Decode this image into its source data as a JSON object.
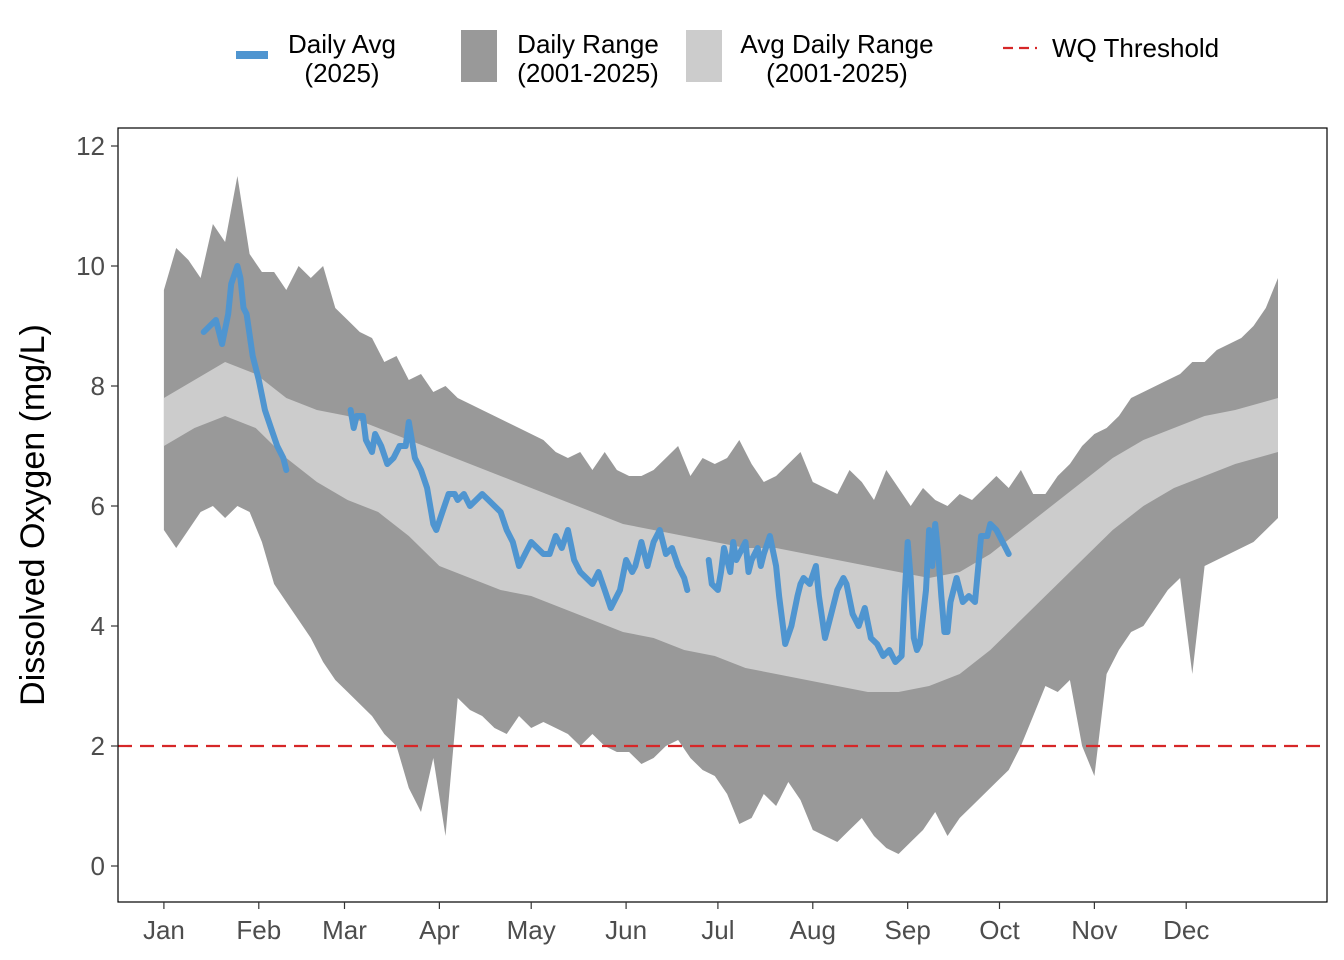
{
  "chart_data": {
    "type": "area",
    "title": "",
    "xlabel": "",
    "ylabel": "Dissolved Oxygen (mg/L)",
    "ylim": [
      -0.6,
      12.3
    ],
    "xlim": [
      -15,
      380
    ],
    "yticks": [
      0,
      2,
      4,
      6,
      8,
      10,
      12
    ],
    "months": [
      {
        "label": "Jan",
        "day": 0
      },
      {
        "label": "Feb",
        "day": 31
      },
      {
        "label": "Mar",
        "day": 59
      },
      {
        "label": "Apr",
        "day": 90
      },
      {
        "label": "May",
        "day": 120
      },
      {
        "label": "Jun",
        "day": 151
      },
      {
        "label": "Jul",
        "day": 181
      },
      {
        "label": "Aug",
        "day": 212
      },
      {
        "label": "Sep",
        "day": 243
      },
      {
        "label": "Oct",
        "day": 273
      },
      {
        "label": "Nov",
        "day": 304
      },
      {
        "label": "Dec",
        "day": 334
      }
    ],
    "colors": {
      "daily_avg": "#4f95d0",
      "daily_range": "#999999",
      "avg_daily_range": "#cccccc",
      "threshold": "#d62728"
    },
    "threshold": 2,
    "legend": [
      {
        "key": "daily_avg",
        "line1": "Daily Avg",
        "line2": "(2025)"
      },
      {
        "key": "daily_range",
        "line1": "Daily Range",
        "line2": "(2001-2025)"
      },
      {
        "key": "avg_daily_range",
        "line1": "Avg Daily Range",
        "line2": "(2001-2025)"
      },
      {
        "key": "threshold",
        "line1": "WQ Threshold",
        "line2": ""
      }
    ],
    "daily_range": {
      "x": [
        0,
        4,
        8,
        12,
        16,
        20,
        24,
        28,
        32,
        36,
        40,
        44,
        48,
        52,
        56,
        60,
        64,
        68,
        72,
        76,
        80,
        84,
        88,
        92,
        96,
        100,
        104,
        108,
        112,
        116,
        120,
        124,
        128,
        132,
        136,
        140,
        144,
        148,
        152,
        156,
        160,
        164,
        168,
        172,
        176,
        180,
        184,
        188,
        192,
        196,
        200,
        204,
        208,
        212,
        216,
        220,
        224,
        228,
        232,
        236,
        240,
        244,
        248,
        252,
        256,
        260,
        264,
        268,
        272,
        276,
        280,
        284,
        288,
        292,
        296,
        300,
        304,
        308,
        312,
        316,
        320,
        324,
        328,
        332,
        336,
        340,
        344,
        348,
        352,
        356,
        360,
        364
      ],
      "high": [
        9.6,
        10.3,
        10.1,
        9.8,
        10.7,
        10.4,
        11.5,
        10.2,
        9.9,
        9.9,
        9.6,
        10.0,
        9.8,
        10.0,
        9.3,
        9.1,
        8.9,
        8.8,
        8.4,
        8.5,
        8.1,
        8.2,
        7.9,
        8.0,
        7.8,
        7.7,
        7.6,
        7.5,
        7.4,
        7.3,
        7.2,
        7.1,
        6.9,
        6.8,
        6.9,
        6.6,
        6.9,
        6.6,
        6.5,
        6.5,
        6.6,
        6.8,
        7.0,
        6.5,
        6.8,
        6.7,
        6.8,
        7.1,
        6.7,
        6.4,
        6.5,
        6.7,
        6.9,
        6.4,
        6.3,
        6.2,
        6.6,
        6.4,
        6.1,
        6.6,
        6.3,
        6.0,
        6.3,
        6.1,
        6.0,
        6.2,
        6.1,
        6.3,
        6.5,
        6.3,
        6.6,
        6.2,
        6.2,
        6.5,
        6.7,
        7.0,
        7.2,
        7.3,
        7.5,
        7.8,
        7.9,
        8.0,
        8.1,
        8.2,
        8.4,
        8.4,
        8.6,
        8.7,
        8.8,
        9.0,
        9.3,
        9.8
      ],
      "low": [
        5.6,
        5.3,
        5.6,
        5.9,
        6.0,
        5.8,
        6.0,
        5.9,
        5.4,
        4.7,
        4.4,
        4.1,
        3.8,
        3.4,
        3.1,
        2.9,
        2.7,
        2.5,
        2.2,
        2.0,
        1.3,
        0.9,
        1.8,
        0.5,
        2.8,
        2.6,
        2.5,
        2.3,
        2.2,
        2.5,
        2.3,
        2.4,
        2.3,
        2.2,
        2.0,
        2.2,
        2.0,
        1.9,
        1.9,
        1.7,
        1.8,
        2.0,
        2.1,
        1.8,
        1.6,
        1.5,
        1.2,
        0.7,
        0.8,
        1.2,
        1.0,
        1.4,
        1.1,
        0.6,
        0.5,
        0.4,
        0.6,
        0.8,
        0.5,
        0.3,
        0.2,
        0.4,
        0.6,
        0.9,
        0.5,
        0.8,
        1.0,
        1.2,
        1.4,
        1.6,
        2.0,
        2.5,
        3.0,
        2.9,
        3.1,
        2.0,
        1.5,
        3.2,
        3.6,
        3.9,
        4.0,
        4.3,
        4.6,
        4.8,
        3.2,
        5.0,
        5.1,
        5.2,
        5.3,
        5.4,
        5.6,
        5.8
      ]
    },
    "avg_daily_range": {
      "x": [
        0,
        10,
        20,
        30,
        40,
        50,
        60,
        70,
        80,
        90,
        100,
        110,
        120,
        130,
        140,
        150,
        160,
        170,
        180,
        190,
        200,
        210,
        220,
        230,
        240,
        250,
        260,
        270,
        280,
        290,
        300,
        310,
        320,
        330,
        340,
        350,
        364
      ],
      "high": [
        7.8,
        8.1,
        8.4,
        8.2,
        7.8,
        7.6,
        7.5,
        7.3,
        7.1,
        6.9,
        6.7,
        6.5,
        6.3,
        6.1,
        5.9,
        5.7,
        5.6,
        5.5,
        5.4,
        5.3,
        5.3,
        5.2,
        5.1,
        5.0,
        4.9,
        4.8,
        4.9,
        5.2,
        5.6,
        6.0,
        6.4,
        6.8,
        7.1,
        7.3,
        7.5,
        7.6,
        7.8
      ],
      "low": [
        7.0,
        7.3,
        7.5,
        7.3,
        6.8,
        6.4,
        6.1,
        5.9,
        5.5,
        5.0,
        4.8,
        4.6,
        4.5,
        4.3,
        4.1,
        3.9,
        3.8,
        3.6,
        3.5,
        3.3,
        3.2,
        3.1,
        3.0,
        2.9,
        2.9,
        3.0,
        3.2,
        3.6,
        4.1,
        4.6,
        5.1,
        5.6,
        6.0,
        6.3,
        6.5,
        6.7,
        6.9
      ]
    },
    "daily_avg": {
      "segments": [
        {
          "x": [
            13,
            15,
            17,
            19,
            21,
            22,
            24,
            25,
            26,
            27,
            29,
            31,
            33,
            35,
            37,
            39,
            40
          ],
          "y": [
            8.9,
            9.0,
            9.1,
            8.7,
            9.2,
            9.7,
            10.0,
            9.8,
            9.3,
            9.2,
            8.5,
            8.1,
            7.6,
            7.3,
            7.0,
            6.8,
            6.6
          ]
        },
        {
          "x": [
            61,
            62,
            63,
            65,
            66,
            68,
            69,
            71,
            73,
            75,
            77,
            79,
            80,
            82,
            84,
            86,
            88,
            89,
            91,
            93,
            95,
            96,
            98,
            100,
            102,
            104,
            106,
            108,
            110,
            112,
            114,
            116,
            118,
            120,
            122,
            124,
            126,
            128,
            130,
            132,
            134,
            136,
            138,
            140,
            142,
            144,
            146,
            148,
            149,
            151,
            153,
            154,
            156,
            158,
            160,
            162,
            164,
            166,
            168,
            170,
            171
          ],
          "y": [
            7.6,
            7.3,
            7.5,
            7.5,
            7.1,
            6.9,
            7.2,
            7.0,
            6.7,
            6.8,
            7.0,
            7.0,
            7.4,
            6.8,
            6.6,
            6.3,
            5.7,
            5.6,
            5.9,
            6.2,
            6.2,
            6.1,
            6.2,
            6.0,
            6.1,
            6.2,
            6.1,
            6.0,
            5.9,
            5.6,
            5.4,
            5.0,
            5.2,
            5.4,
            5.3,
            5.2,
            5.2,
            5.5,
            5.3,
            5.6,
            5.1,
            4.9,
            4.8,
            4.7,
            4.9,
            4.6,
            4.3,
            4.5,
            4.6,
            5.1,
            4.9,
            5.0,
            5.4,
            5.0,
            5.4,
            5.6,
            5.2,
            5.3,
            5.0,
            4.8,
            4.6
          ]
        },
        {
          "x": [
            178,
            179,
            181,
            182,
            183,
            185,
            186,
            187,
            188,
            190,
            191,
            192,
            194,
            195,
            196,
            198,
            200,
            201,
            203,
            205,
            207,
            208,
            209,
            211,
            213,
            214,
            216,
            218,
            220,
            222,
            223,
            225,
            227,
            229,
            231,
            233,
            235,
            237,
            239,
            241,
            242,
            243,
            244,
            245,
            246,
            247,
            249,
            250,
            251,
            252,
            253,
            254,
            255,
            256,
            257,
            259,
            261,
            263,
            265,
            267,
            269,
            270,
            272,
            274,
            276
          ],
          "y": [
            5.1,
            4.7,
            4.6,
            4.9,
            5.3,
            4.9,
            5.4,
            5.1,
            5.2,
            5.4,
            4.9,
            5.1,
            5.3,
            5.0,
            5.2,
            5.5,
            5.0,
            4.5,
            3.7,
            4.0,
            4.5,
            4.7,
            4.8,
            4.7,
            5.0,
            4.5,
            3.8,
            4.2,
            4.6,
            4.8,
            4.7,
            4.2,
            4.0,
            4.3,
            3.8,
            3.7,
            3.5,
            3.6,
            3.4,
            3.5,
            4.5,
            5.4,
            4.8,
            3.8,
            3.6,
            3.7,
            4.6,
            5.6,
            5.0,
            5.7,
            5.2,
            4.5,
            3.9,
            3.9,
            4.4,
            4.8,
            4.4,
            4.5,
            4.4,
            5.5,
            5.5,
            5.7,
            5.6,
            5.4,
            5.2
          ]
        }
      ]
    }
  }
}
